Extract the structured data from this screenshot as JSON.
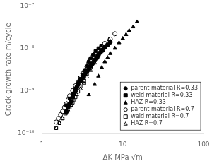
{
  "chart_data": {
    "type": "scatter",
    "xlabel": "ΔK MPa √m",
    "ylabel": "Crack growth rate m/cycle",
    "log": true,
    "grid": false,
    "legend": "lower right",
    "xlim": [
      1,
      100
    ],
    "xticks": [
      1,
      10,
      100
    ],
    "ylim": [
      1e-10,
      1e-07
    ],
    "yticks": [
      {
        "value": 1e-10,
        "label": "10⁻¹⁰"
      },
      {
        "value": 1e-09,
        "label": "10⁻⁹"
      },
      {
        "value": 1e-08,
        "label": "10⁻⁸"
      },
      {
        "value": 1e-07,
        "label": "10⁻⁷"
      }
    ],
    "series": [
      {
        "name": "parent material R=0.33",
        "color": "black",
        "marker": "circle",
        "x": [
          2.0,
          2.1,
          2.2,
          2.3,
          2.4,
          2.5,
          2.6,
          2.7,
          2.8,
          3.0,
          3.2,
          3.4,
          3.6,
          3.8,
          4.0,
          4.2,
          4.5,
          4.8,
          5.0,
          5.3,
          5.6,
          6.0,
          6.5,
          7.0
        ],
        "values": [
          3.2e-10,
          4e-10,
          4.8e-10,
          5.5e-10,
          7e-10,
          8.5e-10,
          1e-09,
          1.2e-09,
          1.4e-09,
          1.7e-09,
          2e-09,
          2.4e-09,
          2.8e-09,
          3.2e-09,
          3.8e-09,
          4.3e-09,
          5.2e-09,
          6e-09,
          7e-09,
          8e-09,
          9e-09,
          1.05e-08,
          1.2e-08,
          1.4e-08
        ]
      },
      {
        "name": "weld material R=0.33",
        "color": "black",
        "marker": "square",
        "x": [
          2.0,
          2.2,
          2.4,
          2.6,
          2.8,
          3.0,
          3.2,
          3.4,
          3.6,
          3.8,
          4.0,
          4.3,
          4.6,
          5.0,
          5.4
        ],
        "values": [
          4.5e-10,
          6.5e-10,
          8.5e-10,
          1.1e-09,
          1.5e-09,
          1.9e-09,
          2.4e-09,
          3e-09,
          3.8e-09,
          4.8e-09,
          5.8e-09,
          7e-09,
          8.5e-09,
          1e-08,
          1.15e-08
        ]
      },
      {
        "name": "HAZ R=0.33",
        "color": "black",
        "marker": "triangle",
        "x": [
          3.8,
          4.5,
          5.0,
          5.5,
          6.0,
          6.5,
          7.0,
          8.0,
          9.0,
          10.0,
          11.0,
          12.0,
          13.5,
          15.0
        ],
        "values": [
          8e-10,
          1.4e-09,
          2.2e-09,
          3.5e-09,
          4.8e-09,
          6e-09,
          7.5e-09,
          1e-08,
          1.35e-08,
          1.7e-08,
          2.1e-08,
          2.6e-08,
          3.2e-08,
          4.2e-08
        ]
      },
      {
        "name": "parent material R=0.7",
        "color": "black",
        "marker": "circle-open",
        "x": [
          1.5,
          1.6,
          1.7,
          1.8,
          1.9,
          2.0,
          2.1,
          2.2,
          2.4,
          2.6,
          2.8,
          3.0,
          3.2,
          3.4,
          3.6,
          3.8,
          4.0,
          4.3,
          4.6,
          5.0,
          5.5,
          6.0,
          7.0,
          8.0
        ],
        "values": [
          1.8e-10,
          2.2e-10,
          2.7e-10,
          3.2e-10,
          4e-10,
          4.8e-10,
          6e-10,
          7.5e-10,
          1e-09,
          1.3e-09,
          1.6e-09,
          2e-09,
          2.5e-09,
          3e-09,
          3.7e-09,
          4.5e-09,
          5.5e-09,
          6.5e-09,
          7.5e-09,
          9e-09,
          1.1e-08,
          1.3e-08,
          1.65e-08,
          2.2e-08
        ]
      },
      {
        "name": "weld material R=0.7",
        "color": "black",
        "marker": "square-open",
        "x": [
          1.5,
          1.65,
          1.8,
          2.0,
          2.2,
          2.4,
          2.6,
          2.8,
          3.0,
          3.3,
          3.6,
          4.0,
          4.4,
          4.8
        ],
        "values": [
          1.3e-10,
          1.7e-10,
          2.2e-10,
          3e-10,
          4e-10,
          5.2e-10,
          7e-10,
          9.5e-10,
          1.25e-09,
          1.7e-09,
          2.4e-09,
          3.5e-09,
          4.8e-09,
          6.5e-09
        ]
      },
      {
        "name": "HAZ R=0.7",
        "color": "black",
        "marker": "triangle-open",
        "x": [
          1.5,
          1.65,
          1.8,
          1.95,
          2.1,
          2.3,
          2.5,
          2.7,
          3.0,
          3.3,
          3.6,
          4.0,
          4.5,
          5.0,
          5.5,
          6.0,
          6.8
        ],
        "values": [
          1.3e-10,
          1.7e-10,
          2.2e-10,
          2.8e-10,
          3.5e-10,
          4.5e-10,
          6e-10,
          8e-10,
          1.1e-09,
          1.5e-09,
          2.1e-09,
          3e-09,
          4.5e-09,
          6.5e-09,
          8.5e-09,
          1.1e-08,
          1.6e-08
        ]
      }
    ]
  }
}
